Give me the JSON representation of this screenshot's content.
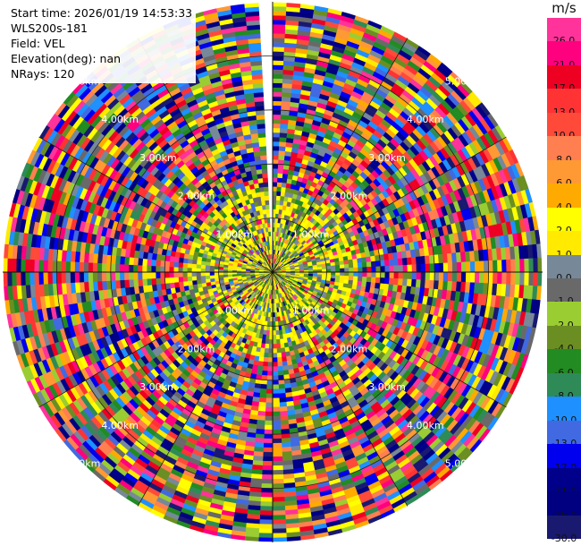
{
  "header": {
    "start_time": "Start time: 2026/01/19 14:53:33",
    "instrument": "WLS200s-181",
    "field": "Field: VEL",
    "elevation": "Elevation(deg): nan",
    "nrays": "NRays: 120"
  },
  "colorbar": {
    "unit": "m/s",
    "bins": [
      {
        "label": "26.0",
        "color": "#ff3399"
      },
      {
        "label": "21.0",
        "color": "#ff007f"
      },
      {
        "label": "17.0",
        "color": "#ee0022"
      },
      {
        "label": "13.0",
        "color": "#ff3333"
      },
      {
        "label": "10.0",
        "color": "#ff4a3a"
      },
      {
        "label": "8.0",
        "color": "#ff7f50"
      },
      {
        "label": "6.0",
        "color": "#ff9933"
      },
      {
        "label": "4.0",
        "color": "#ffaa00"
      },
      {
        "label": "2.0",
        "color": "#ffff00"
      },
      {
        "label": "1.0",
        "color": "#ffea00"
      },
      {
        "label": "0.0",
        "color": "#778899"
      },
      {
        "label": "-1.0",
        "color": "#696969"
      },
      {
        "label": "-2.0",
        "color": "#9acd32"
      },
      {
        "label": "-4.0",
        "color": "#6b8e23"
      },
      {
        "label": "-6.0",
        "color": "#228b22"
      },
      {
        "label": "-8.0",
        "color": "#2e8b57"
      },
      {
        "label": "-10.0",
        "color": "#1e90ff"
      },
      {
        "label": "-13.0",
        "color": "#4169e1"
      },
      {
        "label": "-17.0",
        "color": "#0000ee"
      },
      {
        "label": "-21.0",
        "color": "#00008b"
      },
      {
        "label": "-26.0",
        "color": "#000080"
      },
      {
        "label": "-30.0",
        "color": "#191970"
      }
    ]
  },
  "chart_data": {
    "type": "heatmap",
    "subtype": "polar-ppi",
    "field": "VEL",
    "nrays": 120,
    "range_ring_labels": [
      "1.00km",
      "2.00km",
      "3.00km",
      "4.00km",
      "5.00km"
    ],
    "range_rings_km": [
      1,
      2,
      3,
      4,
      5
    ],
    "max_range_km": 5,
    "blocked_sector_deg": [
      357,
      360
    ],
    "inner_region_range_km": 1.6,
    "grid": true
  }
}
